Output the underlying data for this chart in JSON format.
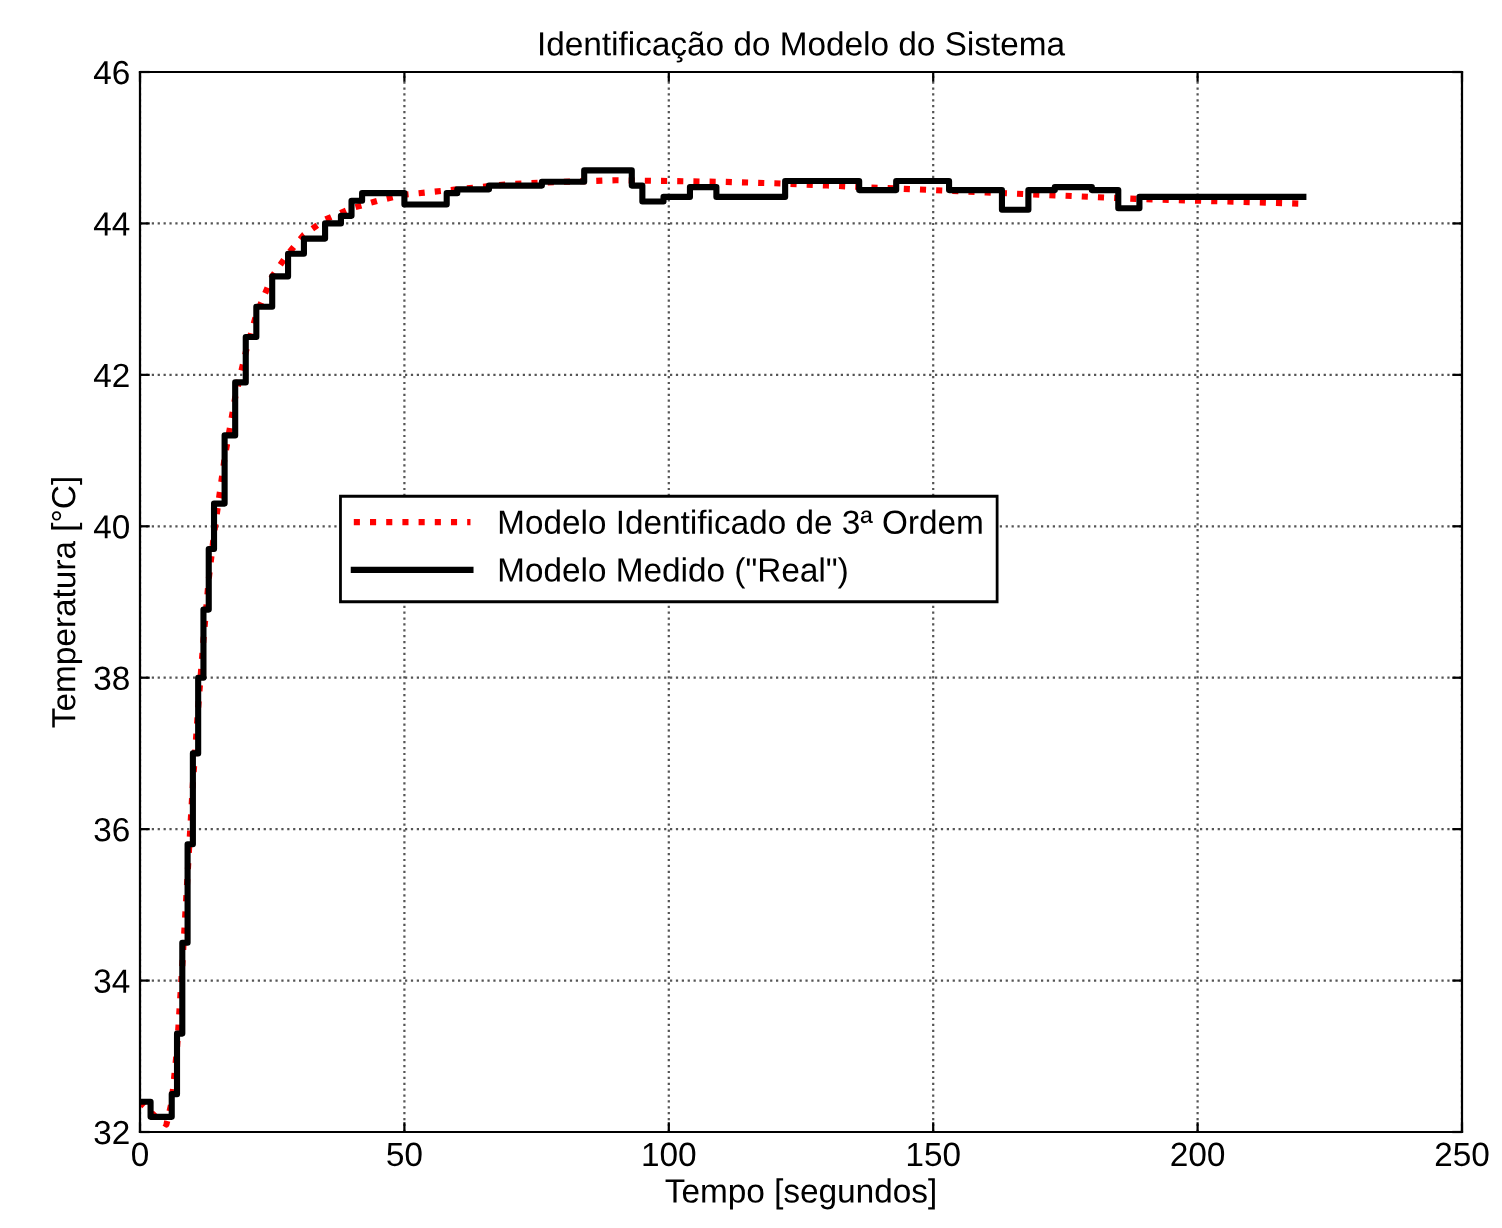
{
  "chart_data": {
    "type": "line",
    "title": "Identificação do Modelo do Sistema",
    "xlabel": "Tempo [segundos]",
    "ylabel": "Temperatura [°C]",
    "xlim": [
      0,
      250
    ],
    "xticks": [
      0,
      50,
      100,
      150,
      200,
      250
    ],
    "ylim": [
      32,
      46
    ],
    "yticks": [
      32,
      34,
      36,
      38,
      40,
      42,
      44,
      46
    ],
    "grid": true,
    "legend": "center",
    "series": [
      {
        "name": "Modelo Identificado de 3ª Ordem",
        "color": "#ff0000",
        "line_style": "dotted",
        "x": [
          0,
          3,
          5,
          6,
          7,
          8,
          9,
          10,
          11,
          12,
          13,
          14,
          16,
          18,
          20,
          22,
          25,
          28,
          31,
          35,
          40,
          45,
          50,
          60,
          70,
          80,
          90,
          100,
          110,
          120,
          130,
          140,
          150,
          160,
          170,
          180,
          190,
          200,
          210,
          220
        ],
        "values": [
          32.4,
          32.2,
          32.1,
          32.4,
          33.1,
          34.2,
          35.4,
          36.6,
          37.6,
          38.5,
          39.3,
          39.9,
          40.9,
          41.7,
          42.3,
          42.8,
          43.3,
          43.6,
          43.85,
          44.05,
          44.2,
          44.3,
          44.38,
          44.45,
          44.52,
          44.55,
          44.57,
          44.56,
          44.55,
          44.53,
          44.5,
          44.47,
          44.44,
          44.41,
          44.38,
          44.35,
          44.32,
          44.3,
          44.28,
          44.26
        ]
      },
      {
        "name": "Modelo Medido (\"Real\")",
        "color": "#000000",
        "line_style": "solid",
        "type": "step",
        "x": [
          0,
          2,
          5,
          6,
          7,
          8,
          9,
          10,
          11,
          12,
          13,
          14,
          16,
          18,
          20,
          22,
          25,
          28,
          31,
          35,
          38,
          40,
          42,
          50,
          58,
          60,
          66,
          76,
          84,
          93,
          95,
          99,
          104,
          109,
          122,
          125,
          136,
          143,
          153,
          160,
          163,
          168,
          173,
          180,
          185,
          189,
          220
        ],
        "values": [
          32.4,
          32.2,
          32.2,
          32.5,
          33.3,
          34.5,
          35.8,
          37.0,
          38.0,
          38.9,
          39.7,
          40.3,
          41.2,
          41.9,
          42.5,
          42.9,
          43.3,
          43.6,
          43.8,
          44.0,
          44.1,
          44.3,
          44.4,
          44.25,
          44.4,
          44.45,
          44.5,
          44.55,
          44.7,
          44.5,
          44.29,
          44.35,
          44.48,
          44.35,
          44.56,
          44.56,
          44.44,
          44.56,
          44.44,
          44.44,
          44.18,
          44.44,
          44.48,
          44.44,
          44.2,
          44.35,
          44.35
        ]
      }
    ]
  }
}
